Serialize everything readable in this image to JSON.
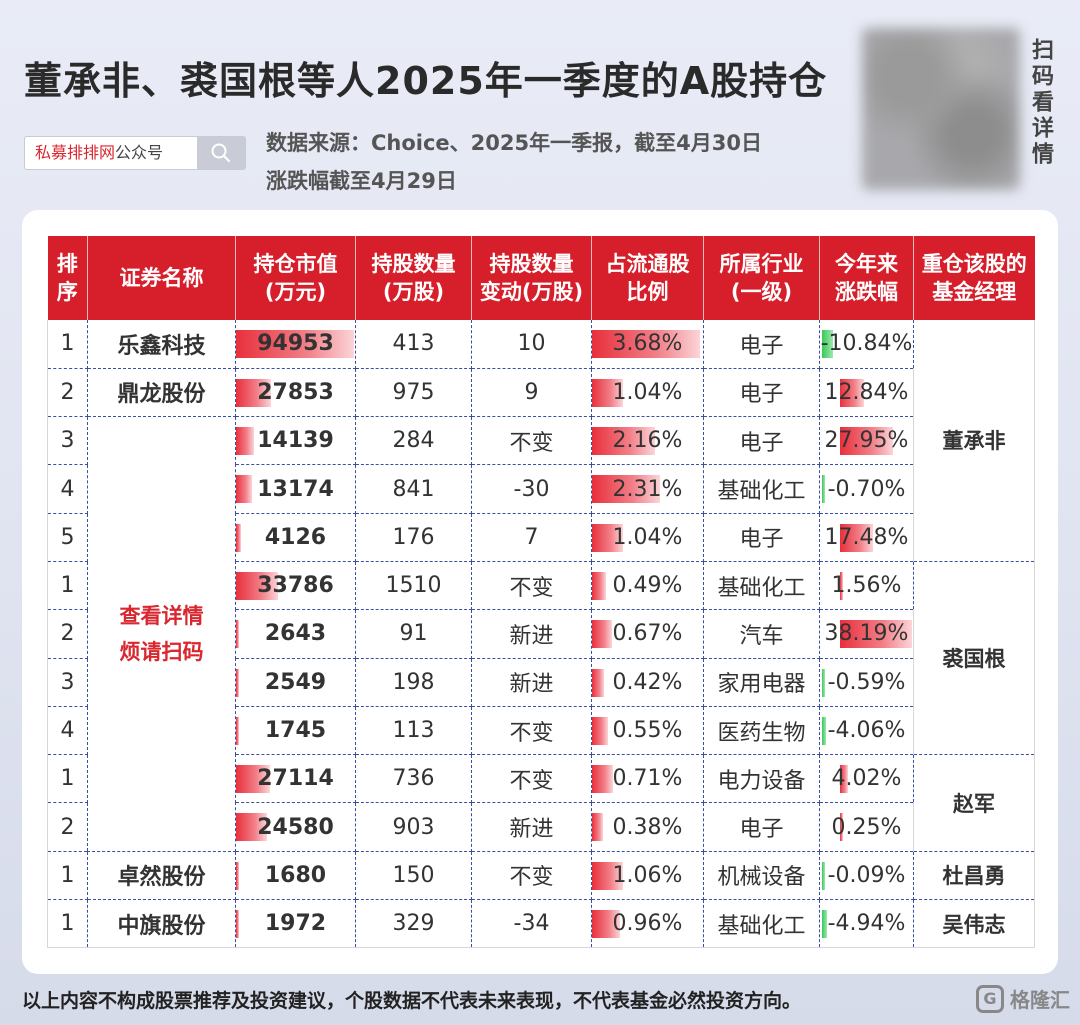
{
  "title": "董承非、裘国根等人2025年一季度的A股持仓",
  "qr_text": "扫码看详情",
  "search": {
    "brand_red": "私募排排网",
    "brand_rest": "公众号"
  },
  "source_line1": "数据来源：Choice、2025年一季报，截至4月30日",
  "source_line2": "涨跌幅截至4月29日",
  "headers": [
    "排序",
    "证券名称",
    "持仓市值\n(万元)",
    "持股数量\n(万股)",
    "持股数量\n变动(万股)",
    "占流通股\n比例",
    "所属行业\n(一级)",
    "今年来\n涨跌幅",
    "重仓该股的\n基金经理"
  ],
  "merged_name": "查看详情\n烦请扫码",
  "rows": [
    {
      "rank": "1",
      "name": "乐鑫科技",
      "value": "94953",
      "value_num": 94953,
      "shares": "413",
      "change": "10",
      "ratio": "3.68%",
      "ratio_num": 3.68,
      "industry": "电子",
      "ytd": "-10.84%",
      "ytd_num": -10.84
    },
    {
      "rank": "2",
      "name": "鼎龙股份",
      "value": "27853",
      "value_num": 27853,
      "shares": "975",
      "change": "9",
      "ratio": "1.04%",
      "ratio_num": 1.04,
      "industry": "电子",
      "ytd": "12.84%",
      "ytd_num": 12.84
    },
    {
      "rank": "3",
      "name": "",
      "value": "14139",
      "value_num": 14139,
      "shares": "284",
      "change": "不变",
      "ratio": "2.16%",
      "ratio_num": 2.16,
      "industry": "电子",
      "ytd": "27.95%",
      "ytd_num": 27.95
    },
    {
      "rank": "4",
      "name": "",
      "value": "13174",
      "value_num": 13174,
      "shares": "841",
      "change": "-30",
      "ratio": "2.31%",
      "ratio_num": 2.31,
      "industry": "基础化工",
      "ytd": "-0.70%",
      "ytd_num": -0.7
    },
    {
      "rank": "5",
      "name": "",
      "value": "4126",
      "value_num": 4126,
      "shares": "176",
      "change": "7",
      "ratio": "1.04%",
      "ratio_num": 1.04,
      "industry": "电子",
      "ytd": "17.48%",
      "ytd_num": 17.48
    },
    {
      "rank": "1",
      "name": "",
      "value": "33786",
      "value_num": 33786,
      "shares": "1510",
      "change": "不变",
      "ratio": "0.49%",
      "ratio_num": 0.49,
      "industry": "基础化工",
      "ytd": "1.56%",
      "ytd_num": 1.56
    },
    {
      "rank": "2",
      "name": "",
      "value": "2643",
      "value_num": 2643,
      "shares": "91",
      "change": "新进",
      "ratio": "0.67%",
      "ratio_num": 0.67,
      "industry": "汽车",
      "ytd": "38.19%",
      "ytd_num": 38.19
    },
    {
      "rank": "3",
      "name": "",
      "value": "2549",
      "value_num": 2549,
      "shares": "198",
      "change": "新进",
      "ratio": "0.42%",
      "ratio_num": 0.42,
      "industry": "家用电器",
      "ytd": "-0.59%",
      "ytd_num": -0.59
    },
    {
      "rank": "4",
      "name": "",
      "value": "1745",
      "value_num": 1745,
      "shares": "113",
      "change": "不变",
      "ratio": "0.55%",
      "ratio_num": 0.55,
      "industry": "医药生物",
      "ytd": "-4.06%",
      "ytd_num": -4.06
    },
    {
      "rank": "1",
      "name": "",
      "value": "27114",
      "value_num": 27114,
      "shares": "736",
      "change": "不变",
      "ratio": "0.71%",
      "ratio_num": 0.71,
      "industry": "电力设备",
      "ytd": "4.02%",
      "ytd_num": 4.02
    },
    {
      "rank": "2",
      "name": "",
      "value": "24580",
      "value_num": 24580,
      "shares": "903",
      "change": "新进",
      "ratio": "0.38%",
      "ratio_num": 0.38,
      "industry": "电子",
      "ytd": "0.25%",
      "ytd_num": 0.25
    },
    {
      "rank": "1",
      "name": "卓然股份",
      "value": "1680",
      "value_num": 1680,
      "shares": "150",
      "change": "不变",
      "ratio": "1.06%",
      "ratio_num": 1.06,
      "industry": "机械设备",
      "ytd": "-0.09%",
      "ytd_num": -0.09
    },
    {
      "rank": "1",
      "name": "中旗股份",
      "value": "1972",
      "value_num": 1972,
      "shares": "329",
      "change": "-34",
      "ratio": "0.96%",
      "ratio_num": 0.96,
      "industry": "基础化工",
      "ytd": "-4.94%",
      "ytd_num": -4.94
    }
  ],
  "managers": [
    {
      "name": "董承非",
      "span": 5
    },
    {
      "name": "裘国根",
      "span": 4
    },
    {
      "name": "赵军",
      "span": 2
    },
    {
      "name": "杜昌勇",
      "span": 1
    },
    {
      "name": "吴伟志",
      "span": 1
    }
  ],
  "footer": "以上内容不构成股票推荐及投资建议，个股数据不代表未来表现，不代表基金必然投资方向。",
  "logo_text": "格隆汇",
  "colors": {
    "header_red": "#d61f2a",
    "bar_red": "#e8303c",
    "bar_green": "#39c85a"
  }
}
